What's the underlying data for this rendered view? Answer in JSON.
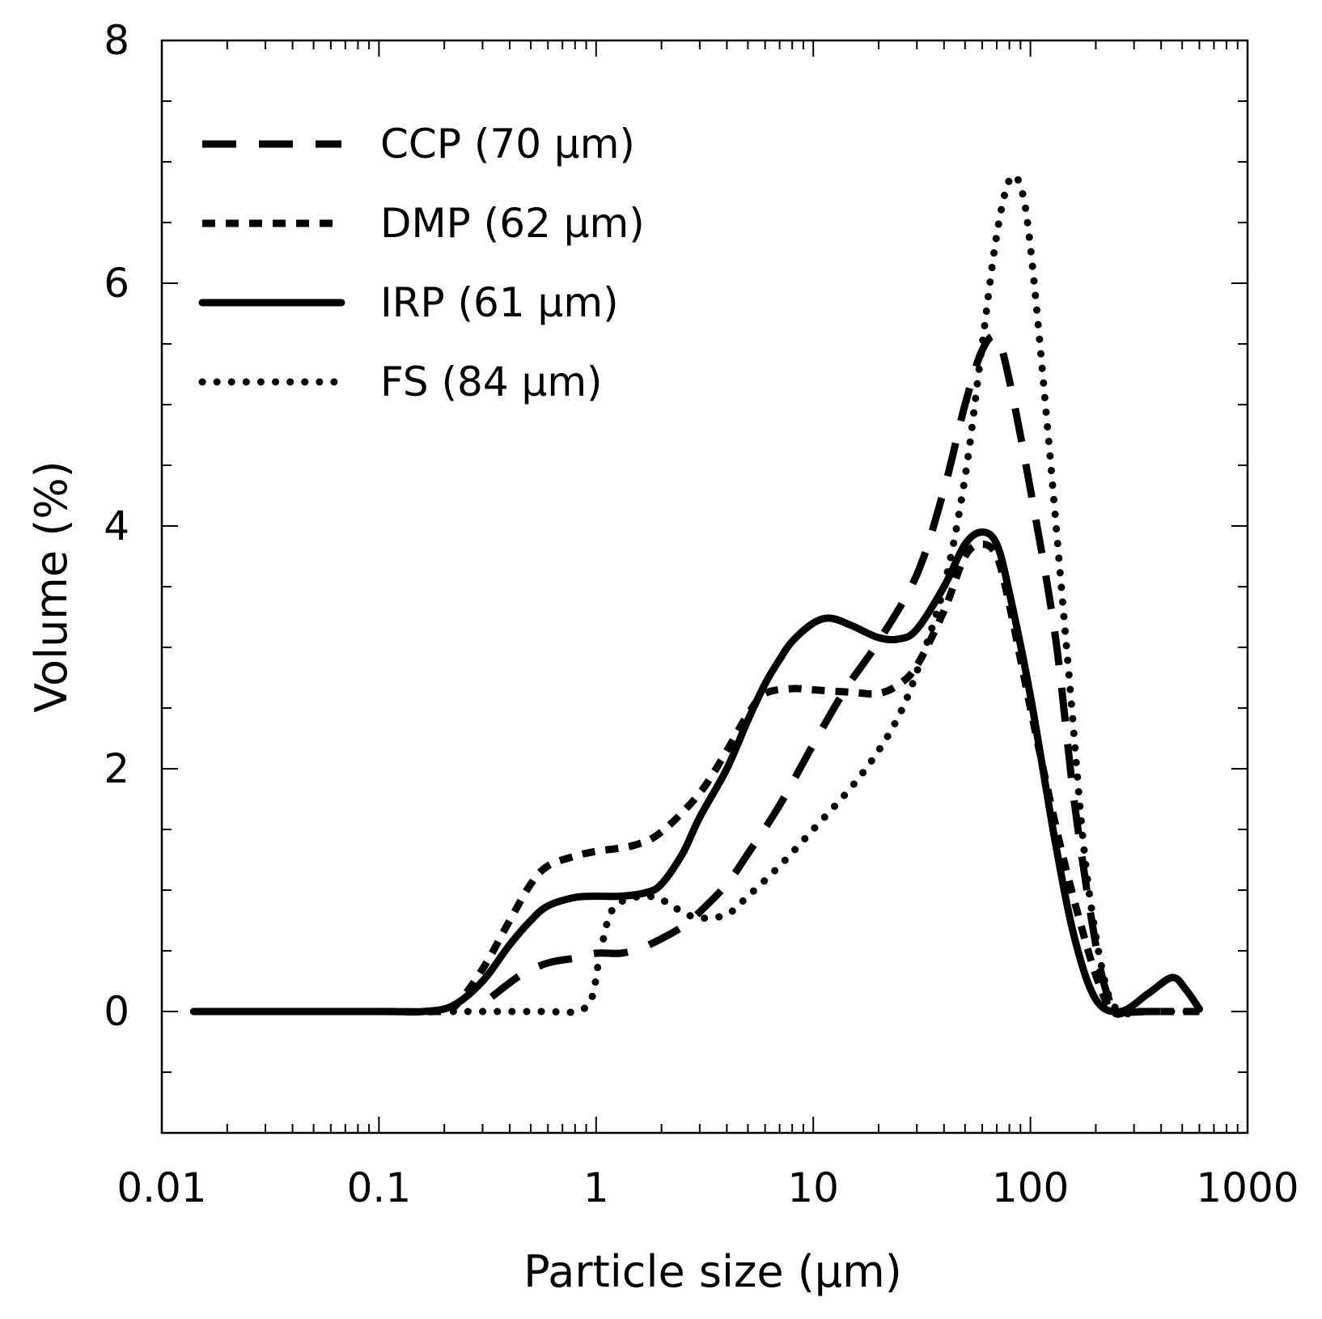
{
  "chart_data": {
    "type": "line",
    "title": "",
    "xlabel": "Particle size (μm)",
    "ylabel": "Volume (%)",
    "xscale": "log",
    "xlim": [
      0.01,
      1000
    ],
    "ylim": [
      -1,
      8
    ],
    "xticks": [
      {
        "value": 0.01,
        "label": "0.01"
      },
      {
        "value": 0.1,
        "label": "0.1"
      },
      {
        "value": 1,
        "label": "1"
      },
      {
        "value": 10,
        "label": "10"
      },
      {
        "value": 100,
        "label": "100"
      },
      {
        "value": 1000,
        "label": "1000"
      }
    ],
    "yticks": [
      {
        "value": 0,
        "label": "0"
      },
      {
        "value": 2,
        "label": "2"
      },
      {
        "value": 4,
        "label": "4"
      },
      {
        "value": 6,
        "label": "6"
      },
      {
        "value": 8,
        "label": "8"
      }
    ],
    "yminor_step": 0.5,
    "grid": false,
    "legend_position": "top-left",
    "series": [
      {
        "name": "CCP (70 μm)",
        "style": "long-dash",
        "points": [
          [
            0.33,
            0.12
          ],
          [
            0.45,
            0.3
          ],
          [
            0.6,
            0.4
          ],
          [
            0.8,
            0.44
          ],
          [
            1.0,
            0.48
          ],
          [
            1.3,
            0.48
          ],
          [
            1.6,
            0.52
          ],
          [
            2.0,
            0.6
          ],
          [
            2.5,
            0.7
          ],
          [
            3.0,
            0.82
          ],
          [
            4.0,
            1.05
          ],
          [
            5.0,
            1.3
          ],
          [
            7.0,
            1.7
          ],
          [
            10.0,
            2.2
          ],
          [
            14.0,
            2.65
          ],
          [
            20.0,
            3.05
          ],
          [
            30.0,
            3.6
          ],
          [
            40.0,
            4.3
          ],
          [
            50.0,
            5.0
          ],
          [
            60.0,
            5.45
          ],
          [
            70.0,
            5.55
          ],
          [
            80.0,
            5.2
          ],
          [
            100.0,
            4.3
          ],
          [
            130.0,
            3.1
          ],
          [
            160.0,
            1.7
          ],
          [
            200.0,
            0.55
          ],
          [
            230.0,
            0.1
          ],
          [
            260.0,
            0.0
          ],
          [
            350.0,
            0.0
          ],
          [
            600.0,
            0.0
          ]
        ]
      },
      {
        "name": "DMP (62 μm)",
        "style": "short-dash",
        "points": [
          [
            0.014,
            0.0
          ],
          [
            0.1,
            0.0
          ],
          [
            0.18,
            0.0
          ],
          [
            0.22,
            0.03
          ],
          [
            0.3,
            0.35
          ],
          [
            0.4,
            0.75
          ],
          [
            0.5,
            1.05
          ],
          [
            0.6,
            1.2
          ],
          [
            0.8,
            1.28
          ],
          [
            1.0,
            1.32
          ],
          [
            1.5,
            1.37
          ],
          [
            2.0,
            1.48
          ],
          [
            3.0,
            1.8
          ],
          [
            4.0,
            2.15
          ],
          [
            5.0,
            2.45
          ],
          [
            6.0,
            2.62
          ],
          [
            8.0,
            2.66
          ],
          [
            10.0,
            2.65
          ],
          [
            15.0,
            2.63
          ],
          [
            20.0,
            2.62
          ],
          [
            25.0,
            2.7
          ],
          [
            30.0,
            2.85
          ],
          [
            40.0,
            3.3
          ],
          [
            50.0,
            3.75
          ],
          [
            60.0,
            3.85
          ],
          [
            70.0,
            3.75
          ],
          [
            80.0,
            3.35
          ],
          [
            100.0,
            2.5
          ],
          [
            130.0,
            1.55
          ],
          [
            160.0,
            0.9
          ],
          [
            200.0,
            0.3
          ],
          [
            240.0,
            0.0
          ],
          [
            300.0,
            0.0
          ],
          [
            600.0,
            0.0
          ]
        ]
      },
      {
        "name": "IRP (61 μm)",
        "style": "solid",
        "points": [
          [
            0.014,
            0.0
          ],
          [
            0.1,
            0.0
          ],
          [
            0.16,
            0.0
          ],
          [
            0.22,
            0.05
          ],
          [
            0.3,
            0.25
          ],
          [
            0.4,
            0.55
          ],
          [
            0.5,
            0.75
          ],
          [
            0.6,
            0.87
          ],
          [
            0.8,
            0.94
          ],
          [
            1.0,
            0.95
          ],
          [
            1.3,
            0.95
          ],
          [
            1.7,
            0.98
          ],
          [
            2.0,
            1.05
          ],
          [
            2.5,
            1.3
          ],
          [
            3.0,
            1.6
          ],
          [
            4.0,
            2.0
          ],
          [
            5.0,
            2.4
          ],
          [
            6.0,
            2.7
          ],
          [
            7.0,
            2.9
          ],
          [
            8.0,
            3.05
          ],
          [
            10.0,
            3.2
          ],
          [
            12.0,
            3.24
          ],
          [
            15.0,
            3.18
          ],
          [
            20.0,
            3.08
          ],
          [
            25.0,
            3.07
          ],
          [
            30.0,
            3.15
          ],
          [
            40.0,
            3.5
          ],
          [
            50.0,
            3.85
          ],
          [
            60.0,
            3.95
          ],
          [
            70.0,
            3.85
          ],
          [
            80.0,
            3.45
          ],
          [
            100.0,
            2.6
          ],
          [
            130.0,
            1.4
          ],
          [
            160.0,
            0.6
          ],
          [
            200.0,
            0.1
          ],
          [
            260.0,
            0.0
          ],
          [
            350.0,
            0.15
          ],
          [
            450.0,
            0.28
          ],
          [
            520.0,
            0.18
          ],
          [
            600.0,
            0.02
          ]
        ]
      },
      {
        "name": "FS (84 μm)",
        "style": "dotted",
        "points": [
          [
            0.22,
            0.0
          ],
          [
            0.4,
            0.0
          ],
          [
            0.6,
            0.0
          ],
          [
            0.8,
            0.0
          ],
          [
            0.95,
            0.1
          ],
          [
            1.05,
            0.5
          ],
          [
            1.2,
            0.85
          ],
          [
            1.6,
            0.95
          ],
          [
            2.0,
            0.92
          ],
          [
            2.5,
            0.82
          ],
          [
            3.0,
            0.77
          ],
          [
            4.0,
            0.8
          ],
          [
            5.0,
            0.95
          ],
          [
            7.0,
            1.2
          ],
          [
            10.0,
            1.5
          ],
          [
            15.0,
            1.85
          ],
          [
            20.0,
            2.15
          ],
          [
            25.0,
            2.45
          ],
          [
            30.0,
            2.8
          ],
          [
            40.0,
            3.5
          ],
          [
            50.0,
            4.4
          ],
          [
            60.0,
            5.5
          ],
          [
            70.0,
            6.4
          ],
          [
            80.0,
            6.85
          ],
          [
            90.0,
            6.8
          ],
          [
            100.0,
            6.3
          ],
          [
            120.0,
            4.8
          ],
          [
            150.0,
            2.8
          ],
          [
            180.0,
            1.2
          ],
          [
            220.0,
            0.25
          ],
          [
            260.0,
            0.0
          ],
          [
            350.0,
            0.0
          ],
          [
            600.0,
            0.0
          ]
        ]
      }
    ]
  }
}
